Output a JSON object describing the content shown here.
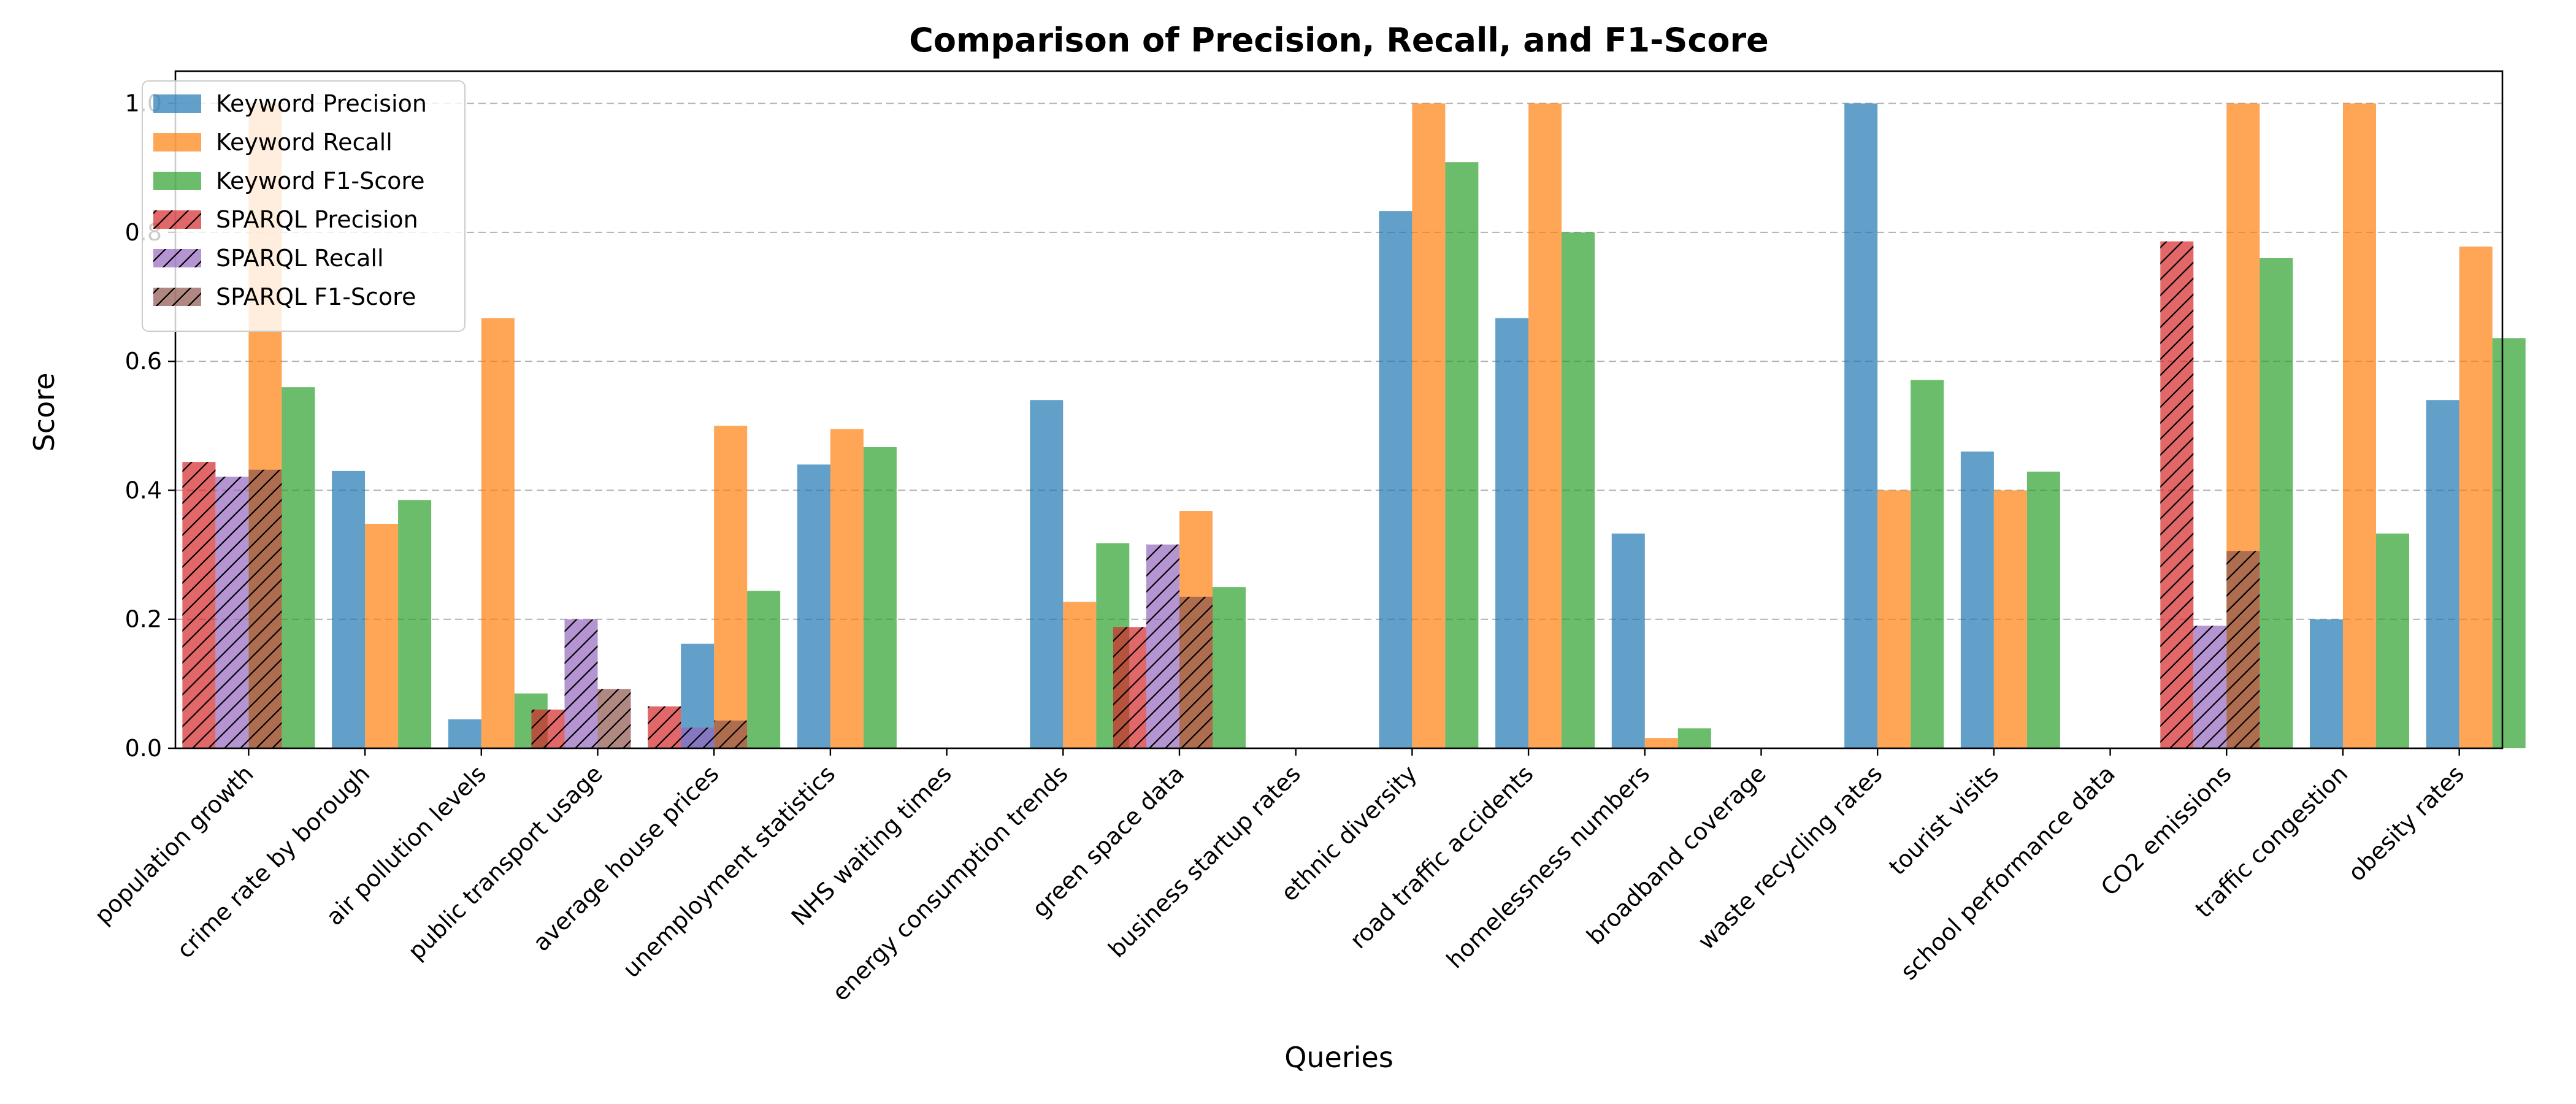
{
  "chart_data": {
    "type": "bar",
    "title": "Comparison of Precision, Recall, and F1-Score",
    "xlabel": "Queries",
    "ylabel": "Score",
    "ylim": [
      0,
      1.05
    ],
    "yticks": [
      "0.0",
      "0.2",
      "0.4",
      "0.6",
      "0.8",
      "1.0"
    ],
    "grid": "horizontal dashed",
    "legend_position": "top-left",
    "categories": [
      "population growth",
      "crime rate by borough",
      "air pollution levels",
      "public transport usage",
      "average house prices",
      "unemployment statistics",
      "NHS waiting times",
      "energy consumption trends",
      "green space data",
      "business startup rates",
      "ethnic diversity",
      "road traffic accidents",
      "homelessness numbers",
      "broadband coverage",
      "waste recycling rates",
      "tourist visits",
      "school performance data",
      "CO2 emissions",
      "traffic congestion",
      "obesity rates"
    ],
    "series": [
      {
        "name": "Keyword Precision",
        "color": "#1f77b4",
        "hatch": false,
        "slot": 1,
        "values": [
          0.0,
          0.43,
          0.045,
          0.0,
          0.162,
          0.44,
          0.0,
          0.54,
          0.0,
          0.0,
          0.833,
          0.667,
          0.333,
          0.0,
          1.0,
          0.46,
          0.0,
          0.0,
          0.2,
          0.54
        ]
      },
      {
        "name": "Keyword Recall",
        "color": "#ff7f0e",
        "hatch": false,
        "slot": 2,
        "values": [
          1.0,
          0.348,
          0.667,
          0.0,
          0.5,
          0.495,
          0.0,
          0.227,
          0.368,
          0.0,
          1.0,
          1.0,
          0.016,
          0.0,
          0.4,
          0.4,
          0.0,
          1.0,
          1.0,
          0.778
        ]
      },
      {
        "name": "Keyword F1-Score",
        "color": "#2ca02c",
        "hatch": false,
        "slot": 3,
        "values": [
          0.56,
          0.385,
          0.085,
          0.0,
          0.244,
          0.467,
          0.0,
          0.318,
          0.25,
          0.0,
          0.909,
          0.8,
          0.031,
          0.0,
          0.571,
          0.429,
          0.0,
          0.76,
          0.333,
          0.636
        ]
      },
      {
        "name": "SPARQL Precision",
        "color": "#d62728",
        "hatch": true,
        "slot": 0,
        "values": [
          0.444,
          0.0,
          0.0,
          0.06,
          0.065,
          0.0,
          0.0,
          0.0,
          0.188,
          0.0,
          0.0,
          0.0,
          0.0,
          0.0,
          0.0,
          0.0,
          0.0,
          0.786,
          0.0,
          0.0
        ]
      },
      {
        "name": "SPARQL Recall",
        "color": "#9467bd",
        "hatch": true,
        "slot": 1,
        "values": [
          0.421,
          0.0,
          0.0,
          0.2,
          0.032,
          0.0,
          0.0,
          0.0,
          0.316,
          0.0,
          0.0,
          0.0,
          0.0,
          0.0,
          0.0,
          0.0,
          0.0,
          0.19,
          0.0,
          0.0
        ]
      },
      {
        "name": "SPARQL F1-Score",
        "color": "#8c564b",
        "hatch": true,
        "slot": 2,
        "values": [
          0.432,
          0.0,
          0.0,
          0.092,
          0.043,
          0.0,
          0.0,
          0.0,
          0.235,
          0.0,
          0.0,
          0.0,
          0.0,
          0.0,
          0.0,
          0.0,
          0.0,
          0.306,
          0.0,
          0.0
        ]
      }
    ]
  }
}
